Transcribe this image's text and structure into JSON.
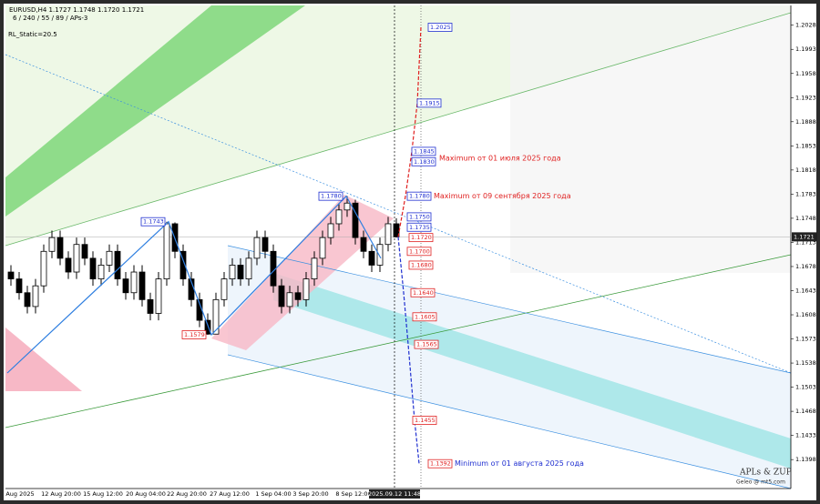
{
  "header": {
    "symbol": "EURUSD,H4 1.1727 1.1748 1.1720 1.1721",
    "params": "6 / 240 / 55 / 89 / APs-3",
    "indicator": "RL_Static=20.5"
  },
  "chart_data": {
    "type": "candlestick",
    "ylim": [
      1.1356,
      1.2054
    ],
    "yticks": [
      1.2028,
      1.1993,
      1.1958,
      1.1923,
      1.1888,
      1.1853,
      1.1818,
      1.1783,
      1.1748,
      1.1713,
      1.1678,
      1.1643,
      1.1608,
      1.1573,
      1.1538,
      1.1503,
      1.1468,
      1.1433,
      1.1398
    ],
    "current_price": 1.1721,
    "time_labels": [
      "Aug 2025",
      "12 Aug 20:00",
      "15 Aug 12:00",
      "20 Aug 04:00",
      "22 Aug 20:00",
      "27 Aug 12:00",
      "1 Sep 04:00",
      "3 Sep 20:00",
      "8 Sep 12:00"
    ],
    "cursor_time": "2025.09.12 11:48",
    "open": [
      1.167,
      1.166,
      1.164,
      1.162,
      1.165,
      1.17,
      1.172,
      1.169,
      1.167,
      1.171,
      1.169,
      1.166,
      1.168,
      1.17,
      1.166,
      1.164,
      1.167,
      1.163,
      1.161,
      1.166,
      1.174,
      1.17,
      1.166,
      1.163,
      1.16,
      1.158,
      1.163,
      1.166,
      1.168,
      1.166,
      1.169,
      1.172,
      1.17,
      1.165,
      1.162,
      1.164,
      1.163,
      1.166,
      1.169,
      1.172,
      1.174,
      1.176,
      1.177,
      1.172,
      1.17,
      1.168,
      1.171,
      1.174
    ],
    "high": [
      1.168,
      1.167,
      1.165,
      1.166,
      1.171,
      1.173,
      1.173,
      1.17,
      1.172,
      1.172,
      1.17,
      1.169,
      1.171,
      1.171,
      1.167,
      1.168,
      1.168,
      1.164,
      1.167,
      1.1743,
      1.1742,
      1.171,
      1.167,
      1.164,
      1.161,
      1.164,
      1.167,
      1.169,
      1.169,
      1.17,
      1.173,
      1.173,
      1.171,
      1.166,
      1.165,
      1.165,
      1.167,
      1.17,
      1.173,
      1.175,
      1.177,
      1.178,
      1.1775,
      1.173,
      1.171,
      1.172,
      1.175,
      1.1748
    ],
    "low": [
      1.165,
      1.163,
      1.161,
      1.161,
      1.164,
      1.169,
      1.168,
      1.166,
      1.166,
      1.168,
      1.165,
      1.165,
      1.167,
      1.165,
      1.163,
      1.163,
      1.162,
      1.16,
      1.16,
      1.165,
      1.169,
      1.165,
      1.162,
      1.159,
      1.1579,
      1.1585,
      1.162,
      1.165,
      1.165,
      1.165,
      1.168,
      1.169,
      1.164,
      1.161,
      1.161,
      1.162,
      1.162,
      1.165,
      1.168,
      1.171,
      1.173,
      1.175,
      1.171,
      1.169,
      1.167,
      1.167,
      1.17,
      1.172
    ],
    "close": [
      1.166,
      1.164,
      1.162,
      1.165,
      1.17,
      1.172,
      1.169,
      1.167,
      1.171,
      1.169,
      1.166,
      1.168,
      1.17,
      1.166,
      1.164,
      1.167,
      1.163,
      1.161,
      1.166,
      1.174,
      1.17,
      1.166,
      1.163,
      1.16,
      1.158,
      1.163,
      1.166,
      1.168,
      1.166,
      1.169,
      1.172,
      1.17,
      1.165,
      1.162,
      1.164,
      1.163,
      1.166,
      1.169,
      1.172,
      1.174,
      1.176,
      1.177,
      1.172,
      1.17,
      1.168,
      1.171,
      1.174,
      1.1721
    ],
    "levels": [
      {
        "value": 1.2025,
        "label": "1.2025",
        "color": "#1f2fd0"
      },
      {
        "value": 1.1915,
        "label": "1.1915",
        "color": "#1f2fd0"
      },
      {
        "value": 1.1845,
        "label": "1.1845",
        "color": "#1f2fd0"
      },
      {
        "value": 1.183,
        "label": "1.1830",
        "color": "#1f2fd0"
      },
      {
        "value": 1.178,
        "label": "1.1780",
        "color": "#1f2fd0"
      },
      {
        "value": 1.175,
        "label": "1.1750",
        "color": "#1f2fd0"
      },
      {
        "value": 1.1735,
        "label": "1.1735",
        "color": "#1f2fd0"
      },
      {
        "value": 1.172,
        "label": "1.1720",
        "color": "#e02020"
      },
      {
        "value": 1.17,
        "label": "1.1700",
        "color": "#e02020"
      },
      {
        "value": 1.168,
        "label": "1.1680",
        "color": "#e02020"
      },
      {
        "value": 1.164,
        "label": "1.1640",
        "color": "#e02020"
      },
      {
        "value": 1.1605,
        "label": "1.1605",
        "color": "#e02020"
      },
      {
        "value": 1.1565,
        "label": "1.1565",
        "color": "#e02020"
      },
      {
        "value": 1.1455,
        "label": "1.1455",
        "color": "#e02020"
      },
      {
        "value": 1.1392,
        "label": "1.1392",
        "color": "#e02020"
      },
      {
        "value": 1.178,
        "label": "1.1780",
        "color": "#1f2fd0"
      },
      {
        "value": 1.1743,
        "label": "1.1743",
        "color": "#1f2fd0"
      },
      {
        "value": 1.1579,
        "label": "1.1579",
        "color": "#e02020"
      }
    ],
    "annotations": [
      {
        "text": "Maximum от 01 июля 2025 года",
        "color": "#e02020"
      },
      {
        "text": "Maximum от 09 сентября 2025 года",
        "color": "#e02020"
      },
      {
        "text": "Minimum от 01 августа 2025 года",
        "color": "#1f2fd0"
      }
    ]
  },
  "watermark": {
    "title": "APLs & ZUP",
    "site": "Geleo @ mt5.com"
  }
}
